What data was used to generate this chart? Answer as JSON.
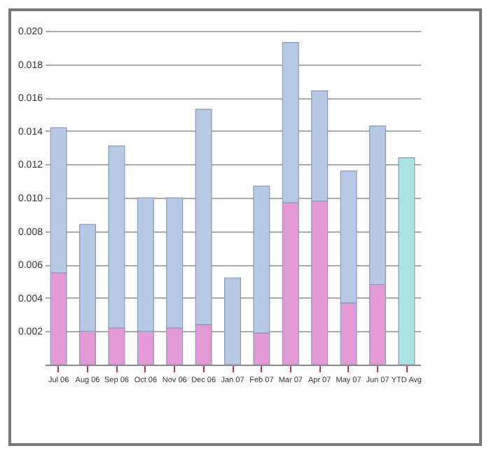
{
  "chart_data": {
    "type": "bar",
    "stacked": true,
    "categories": [
      "Jul 06",
      "Aug 06",
      "Sep 06",
      "Oct 06",
      "Nov 06",
      "Dec 06",
      "Jan 07",
      "Feb 07",
      "Mar 07",
      "Apr 07",
      "May 07",
      "Jun 07",
      "YTD Avg"
    ],
    "series": [
      {
        "color": "#e59ad8",
        "values": [
          0.0055,
          0.002,
          0.0022,
          0.002,
          0.0022,
          0.0024,
          0,
          0.0019,
          0.0097,
          0.0098,
          0.0037,
          0.0048,
          null
        ]
      },
      {
        "color": "#b7c9e4",
        "values": [
          0.0087,
          0.0064,
          0.0109,
          0.008,
          0.0078,
          0.0129,
          0.0052,
          0.0088,
          0.0096,
          0.0066,
          0.0079,
          0.0095,
          null
        ]
      },
      {
        "color": "#ace3e3",
        "values": [
          null,
          null,
          null,
          null,
          null,
          null,
          null,
          null,
          null,
          null,
          null,
          null,
          0.0124
        ]
      }
    ],
    "ylim": [
      0,
      0.02
    ],
    "yticks": [
      {
        "value": 0.002,
        "label": "0.002"
      },
      {
        "value": 0.004,
        "label": "0.004"
      },
      {
        "value": 0.006,
        "label": "0.006"
      },
      {
        "value": 0.008,
        "label": "0.008"
      },
      {
        "value": 0.01,
        "label": "0.010"
      },
      {
        "value": 0.012,
        "label": "0.012"
      },
      {
        "value": 0.014,
        "label": "0.014"
      },
      {
        "value": 0.016,
        "label": "0.016"
      },
      {
        "value": 0.018,
        "label": "0.018"
      },
      {
        "value": 0.02,
        "label": "0.020"
      }
    ],
    "grid": "y",
    "legend": false
  }
}
